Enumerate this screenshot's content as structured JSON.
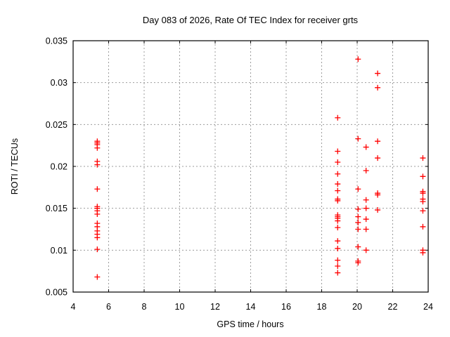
{
  "chart_data": {
    "type": "scatter",
    "title": "Day 083 of 2026, Rate Of TEC Index for receiver grts",
    "xlabel": "GPS time / hours",
    "ylabel": "ROTI / TECUs",
    "xlim": [
      4,
      24
    ],
    "ylim": [
      0.005,
      0.035
    ],
    "grid": true,
    "legend": "none",
    "marker": "plus",
    "marker_color": "#ff0000",
    "grid_color": "#9c9c9c",
    "axis_color": "#000000",
    "xticks": [
      {
        "v": 4,
        "label": "4"
      },
      {
        "v": 6,
        "label": "6"
      },
      {
        "v": 8,
        "label": "8"
      },
      {
        "v": 10,
        "label": "10"
      },
      {
        "v": 12,
        "label": "12"
      },
      {
        "v": 14,
        "label": "14"
      },
      {
        "v": 16,
        "label": "16"
      },
      {
        "v": 18,
        "label": "18"
      },
      {
        "v": 20,
        "label": "20"
      },
      {
        "v": 22,
        "label": "22"
      },
      {
        "v": 24,
        "label": "24"
      }
    ],
    "yticks": [
      {
        "v": 0.005,
        "label": "0.005"
      },
      {
        "v": 0.01,
        "label": "0.01"
      },
      {
        "v": 0.015,
        "label": "0.015"
      },
      {
        "v": 0.02,
        "label": "0.02"
      },
      {
        "v": 0.025,
        "label": "0.025"
      },
      {
        "v": 0.03,
        "label": "0.03"
      },
      {
        "v": 0.035,
        "label": "0.035"
      }
    ],
    "series": [
      {
        "name": "ROTI",
        "points": [
          [
            5.36,
            0.023
          ],
          [
            5.36,
            0.0228
          ],
          [
            5.36,
            0.0226
          ],
          [
            5.36,
            0.0222
          ],
          [
            5.36,
            0.0206
          ],
          [
            5.36,
            0.0202
          ],
          [
            5.36,
            0.0173
          ],
          [
            5.36,
            0.0152
          ],
          [
            5.36,
            0.015
          ],
          [
            5.36,
            0.0147
          ],
          [
            5.36,
            0.0143
          ],
          [
            5.36,
            0.0132
          ],
          [
            5.36,
            0.0128
          ],
          [
            5.36,
            0.0123
          ],
          [
            5.36,
            0.0119
          ],
          [
            5.36,
            0.0115
          ],
          [
            5.36,
            0.0101
          ],
          [
            5.36,
            0.0068
          ],
          [
            18.9,
            0.0258
          ],
          [
            18.9,
            0.0218
          ],
          [
            18.9,
            0.0205
          ],
          [
            18.9,
            0.0191
          ],
          [
            18.9,
            0.0179
          ],
          [
            18.9,
            0.0171
          ],
          [
            18.9,
            0.0161
          ],
          [
            18.9,
            0.0159
          ],
          [
            18.9,
            0.0142
          ],
          [
            18.9,
            0.014
          ],
          [
            18.9,
            0.0138
          ],
          [
            18.9,
            0.0135
          ],
          [
            18.9,
            0.0127
          ],
          [
            18.9,
            0.0111
          ],
          [
            18.9,
            0.0102
          ],
          [
            18.9,
            0.0088
          ],
          [
            18.9,
            0.0081
          ],
          [
            18.9,
            0.0073
          ],
          [
            20.05,
            0.0328
          ],
          [
            20.05,
            0.0233
          ],
          [
            20.05,
            0.0173
          ],
          [
            20.05,
            0.0149
          ],
          [
            20.05,
            0.014
          ],
          [
            20.05,
            0.0133
          ],
          [
            20.05,
            0.0125
          ],
          [
            20.05,
            0.0104
          ],
          [
            20.05,
            0.0087
          ],
          [
            20.05,
            0.0085
          ],
          [
            20.5,
            0.0223
          ],
          [
            20.5,
            0.0195
          ],
          [
            20.5,
            0.016
          ],
          [
            20.5,
            0.015
          ],
          [
            20.5,
            0.0137
          ],
          [
            20.5,
            0.0125
          ],
          [
            20.5,
            0.01
          ],
          [
            21.15,
            0.0311
          ],
          [
            21.15,
            0.0294
          ],
          [
            21.15,
            0.023
          ],
          [
            21.15,
            0.021
          ],
          [
            21.15,
            0.0168
          ],
          [
            21.15,
            0.0166
          ],
          [
            21.15,
            0.0148
          ],
          [
            23.7,
            0.021
          ],
          [
            23.7,
            0.0188
          ],
          [
            23.7,
            0.017
          ],
          [
            23.7,
            0.0168
          ],
          [
            23.7,
            0.0161
          ],
          [
            23.7,
            0.0158
          ],
          [
            23.7,
            0.0147
          ],
          [
            23.7,
            0.0128
          ],
          [
            23.7,
            0.01
          ],
          [
            23.7,
            0.0097
          ]
        ]
      }
    ]
  }
}
